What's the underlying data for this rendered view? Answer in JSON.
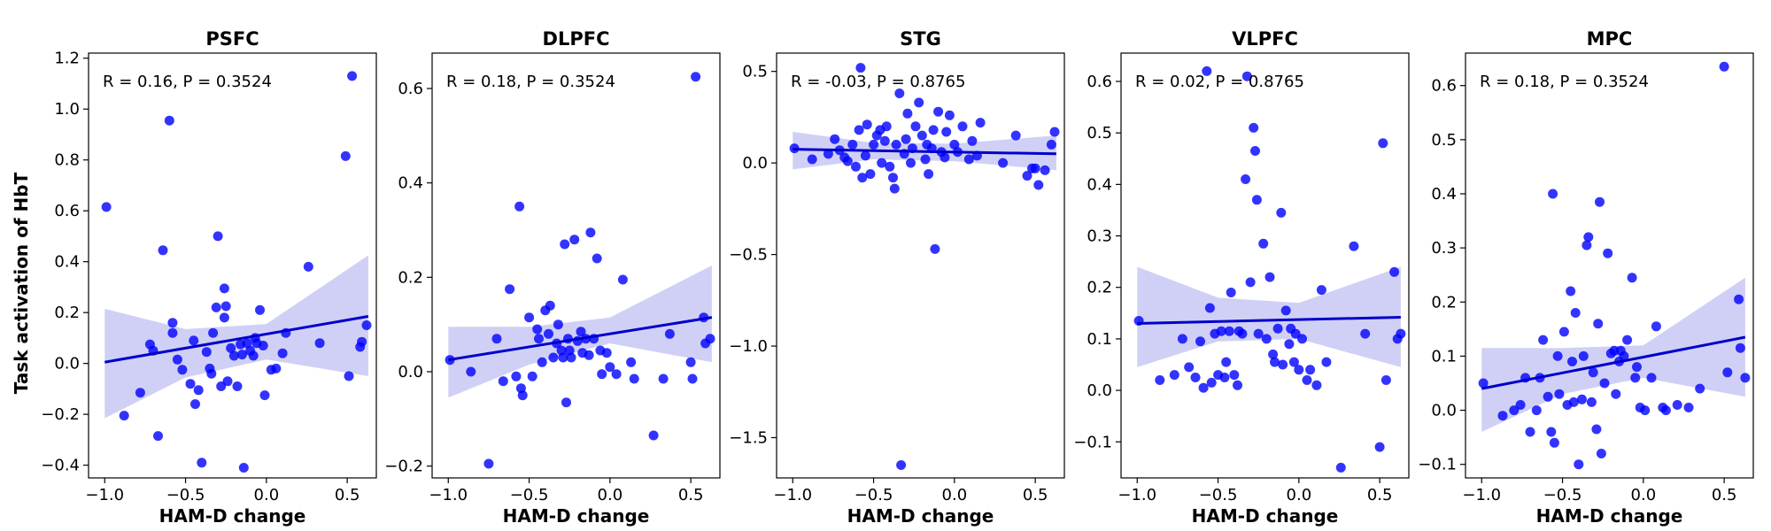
{
  "figure": {
    "ylabel": "Task activation of HbT",
    "xlabel": "HAM-D change",
    "point_color": "#0000ff",
    "line_color": "#0000cc",
    "band_color": "#c8c8f5"
  },
  "chart_data": [
    {
      "type": "scatter",
      "title": "PSFC",
      "xlabel": "HAM-D change",
      "ylabel": "Task activation of HbT",
      "annotation": "R = 0.16, P = 0.3524",
      "xlim": [
        -1.1,
        0.68
      ],
      "ylim": [
        -0.45,
        1.22
      ],
      "xticks": [
        -1.0,
        -0.5,
        0.0,
        0.5
      ],
      "xtick_labels": [
        "−1.0",
        "−0.5",
        "0.0",
        "0.5"
      ],
      "yticks": [
        -0.4,
        -0.2,
        0.0,
        0.2,
        0.4,
        0.6,
        0.8,
        1.0,
        1.2
      ],
      "ytick_labels": [
        "−0.4",
        "−0.2",
        "0.0",
        "0.2",
        "0.4",
        "0.6",
        "0.8",
        "1.0",
        "1.2"
      ],
      "grid": false,
      "fit": {
        "x": [
          -1.0,
          0.63
        ],
        "y": [
          0.005,
          0.185
        ]
      },
      "ci_band": {
        "x": [
          -1.0,
          -0.5,
          0.0,
          0.63
        ],
        "upper": [
          0.215,
          0.135,
          0.155,
          0.425
        ],
        "lower": [
          -0.215,
          -0.055,
          0.015,
          -0.05
        ]
      },
      "x": [
        -0.99,
        -0.88,
        -0.78,
        -0.72,
        -0.7,
        -0.67,
        -0.64,
        -0.6,
        -0.58,
        -0.58,
        -0.55,
        -0.52,
        -0.47,
        -0.45,
        -0.44,
        -0.42,
        -0.4,
        -0.37,
        -0.35,
        -0.34,
        -0.33,
        -0.31,
        -0.3,
        -0.28,
        -0.26,
        -0.26,
        -0.25,
        -0.24,
        -0.22,
        -0.2,
        -0.18,
        -0.16,
        -0.15,
        -0.14,
        -0.12,
        -0.1,
        -0.08,
        -0.07,
        -0.06,
        -0.04,
        -0.02,
        -0.01,
        0.03,
        0.06,
        0.1,
        0.12,
        0.26,
        0.33,
        0.49,
        0.51,
        0.53,
        0.58,
        0.59,
        0.62
      ],
      "y": [
        0.615,
        -0.205,
        -0.115,
        0.075,
        0.05,
        -0.285,
        0.445,
        0.955,
        0.16,
        0.12,
        0.015,
        -0.025,
        -0.08,
        0.09,
        -0.16,
        -0.105,
        -0.39,
        0.045,
        -0.02,
        -0.04,
        0.12,
        0.22,
        0.5,
        -0.09,
        0.295,
        0.18,
        0.225,
        -0.07,
        0.06,
        0.03,
        -0.09,
        0.075,
        0.035,
        -0.41,
        0.08,
        0.05,
        0.03,
        0.1,
        0.08,
        0.21,
        0.07,
        -0.125,
        -0.025,
        -0.02,
        0.04,
        0.12,
        0.38,
        0.08,
        0.815,
        -0.05,
        1.13,
        0.065,
        0.085,
        0.15
      ]
    },
    {
      "type": "scatter",
      "title": "DLPFC",
      "xlabel": "HAM-D change",
      "annotation": "R = 0.18, P = 0.3524",
      "xlim": [
        -1.1,
        0.68
      ],
      "ylim": [
        -0.225,
        0.675
      ],
      "xticks": [
        -1.0,
        -0.5,
        0.0,
        0.5
      ],
      "xtick_labels": [
        "−1.0",
        "−0.5",
        "0.0",
        "0.5"
      ],
      "yticks": [
        -0.2,
        0.0,
        0.2,
        0.4,
        0.6
      ],
      "ytick_labels": [
        "−0.2",
        "0.0",
        "0.2",
        "0.4",
        "0.6"
      ],
      "grid": false,
      "fit": {
        "x": [
          -1.0,
          0.63
        ],
        "y": [
          0.025,
          0.115
        ]
      },
      "ci_band": {
        "x": [
          -1.0,
          -0.5,
          0.0,
          0.63
        ],
        "upper": [
          0.095,
          0.095,
          0.115,
          0.225
        ],
        "lower": [
          -0.055,
          0.015,
          0.06,
          0.02
        ]
      },
      "x": [
        -0.99,
        -0.86,
        -0.75,
        -0.7,
        -0.66,
        -0.62,
        -0.58,
        -0.56,
        -0.55,
        -0.54,
        -0.5,
        -0.48,
        -0.45,
        -0.44,
        -0.42,
        -0.4,
        -0.38,
        -0.37,
        -0.35,
        -0.33,
        -0.32,
        -0.3,
        -0.29,
        -0.28,
        -0.27,
        -0.26,
        -0.25,
        -0.24,
        -0.22,
        -0.2,
        -0.18,
        -0.17,
        -0.15,
        -0.13,
        -0.12,
        -0.1,
        -0.08,
        -0.06,
        -0.05,
        -0.02,
        0.0,
        0.04,
        0.08,
        0.13,
        0.15,
        0.27,
        0.33,
        0.37,
        0.5,
        0.51,
        0.53,
        0.58,
        0.59,
        0.62
      ],
      "y": [
        0.025,
        0.0,
        -0.195,
        0.07,
        -0.02,
        0.175,
        -0.01,
        0.35,
        -0.035,
        -0.05,
        0.115,
        -0.01,
        0.09,
        0.07,
        0.02,
        0.13,
        0.08,
        0.14,
        0.03,
        0.06,
        0.1,
        0.045,
        0.03,
        0.27,
        -0.065,
        0.07,
        0.045,
        0.03,
        0.28,
        0.065,
        0.085,
        0.04,
        0.07,
        0.035,
        0.295,
        0.07,
        0.24,
        0.045,
        -0.005,
        0.04,
        0.01,
        -0.005,
        0.195,
        0.02,
        -0.015,
        -0.135,
        -0.015,
        0.08,
        0.02,
        -0.015,
        0.625,
        0.115,
        0.06,
        0.07
      ]
    },
    {
      "type": "scatter",
      "title": "STG",
      "xlabel": "HAM-D change",
      "annotation": "R = -0.03, P = 0.8765",
      "xlim": [
        -1.1,
        0.68
      ],
      "ylim": [
        -1.72,
        0.6
      ],
      "xticks": [
        -1.0,
        -0.5,
        0.0,
        0.5
      ],
      "xtick_labels": [
        "−1.0",
        "−0.5",
        "0.0",
        "0.5"
      ],
      "yticks": [
        -1.5,
        -1.0,
        -0.5,
        0.0,
        0.5
      ],
      "ytick_labels": [
        "−1.5",
        "−1.0",
        "−0.5",
        "0.0",
        "0.5"
      ],
      "grid": false,
      "fit": {
        "x": [
          -1.0,
          0.63
        ],
        "y": [
          0.075,
          0.05
        ]
      },
      "ci_band": {
        "x": [
          -1.0,
          -0.5,
          0.0,
          0.63
        ],
        "upper": [
          0.17,
          0.11,
          0.105,
          0.15
        ],
        "lower": [
          -0.035,
          0.02,
          0.01,
          -0.04
        ]
      },
      "x": [
        -0.99,
        -0.88,
        -0.78,
        -0.74,
        -0.71,
        -0.68,
        -0.66,
        -0.63,
        -0.61,
        -0.59,
        -0.58,
        -0.57,
        -0.55,
        -0.54,
        -0.52,
        -0.5,
        -0.48,
        -0.46,
        -0.45,
        -0.43,
        -0.42,
        -0.4,
        -0.38,
        -0.37,
        -0.36,
        -0.34,
        -0.33,
        -0.31,
        -0.3,
        -0.29,
        -0.27,
        -0.26,
        -0.24,
        -0.22,
        -0.2,
        -0.18,
        -0.17,
        -0.16,
        -0.14,
        -0.13,
        -0.12,
        -0.1,
        -0.08,
        -0.06,
        -0.05,
        -0.03,
        0.0,
        0.02,
        0.05,
        0.09,
        0.11,
        0.14,
        0.16,
        0.3,
        0.38,
        0.45,
        0.48,
        0.5,
        0.52,
        0.56,
        0.6,
        0.62
      ],
      "y": [
        0.08,
        0.02,
        0.05,
        0.13,
        0.07,
        0.03,
        0.01,
        0.1,
        -0.02,
        0.18,
        0.52,
        -0.08,
        0.04,
        0.21,
        -0.06,
        0.1,
        0.15,
        0.18,
        0.0,
        0.12,
        0.2,
        -0.02,
        -0.08,
        -0.14,
        0.1,
        0.38,
        -1.65,
        0.05,
        0.13,
        0.27,
        0.0,
        0.08,
        0.2,
        0.33,
        0.15,
        0.02,
        0.1,
        -0.06,
        0.08,
        0.18,
        -0.47,
        0.28,
        0.06,
        0.03,
        0.17,
        0.26,
        0.1,
        0.06,
        0.2,
        0.02,
        0.12,
        0.04,
        0.22,
        0.0,
        0.15,
        -0.07,
        -0.03,
        -0.03,
        -0.12,
        -0.04,
        0.1,
        0.17
      ]
    },
    {
      "type": "scatter",
      "title": "VLPFC",
      "xlabel": "HAM-D change",
      "annotation": "R = 0.02, P = 0.8765",
      "xlim": [
        -1.1,
        0.68
      ],
      "ylim": [
        -0.17,
        0.655
      ],
      "xticks": [
        -1.0,
        -0.5,
        0.0,
        0.5
      ],
      "xtick_labels": [
        "−1.0",
        "−0.5",
        "0.0",
        "0.5"
      ],
      "yticks": [
        -0.1,
        0.0,
        0.1,
        0.2,
        0.3,
        0.4,
        0.5,
        0.6
      ],
      "ytick_labels": [
        "−0.1",
        "0.0",
        "0.1",
        "0.2",
        "0.3",
        "0.4",
        "0.5",
        "0.6"
      ],
      "grid": false,
      "fit": {
        "x": [
          -1.0,
          0.63
        ],
        "y": [
          0.13,
          0.142
        ]
      },
      "ci_band": {
        "x": [
          -1.0,
          -0.5,
          0.0,
          0.63
        ],
        "upper": [
          0.24,
          0.18,
          0.17,
          0.24
        ],
        "lower": [
          0.045,
          0.095,
          0.1,
          0.045
        ]
      },
      "x": [
        -0.99,
        -0.86,
        -0.77,
        -0.72,
        -0.68,
        -0.64,
        -0.61,
        -0.59,
        -0.57,
        -0.55,
        -0.54,
        -0.52,
        -0.5,
        -0.48,
        -0.46,
        -0.45,
        -0.43,
        -0.42,
        -0.4,
        -0.38,
        -0.37,
        -0.35,
        -0.33,
        -0.32,
        -0.3,
        -0.28,
        -0.27,
        -0.26,
        -0.25,
        -0.22,
        -0.2,
        -0.18,
        -0.16,
        -0.15,
        -0.13,
        -0.11,
        -0.1,
        -0.08,
        -0.06,
        -0.05,
        -0.03,
        -0.02,
        0.0,
        0.02,
        0.05,
        0.07,
        0.11,
        0.14,
        0.17,
        0.26,
        0.34,
        0.41,
        0.5,
        0.52,
        0.54,
        0.59,
        0.61,
        0.63
      ],
      "y": [
        0.135,
        0.02,
        0.03,
        0.1,
        0.045,
        0.025,
        0.095,
        0.005,
        0.62,
        0.16,
        0.015,
        0.11,
        0.03,
        0.115,
        0.025,
        0.055,
        0.115,
        0.19,
        0.03,
        0.01,
        0.115,
        0.11,
        0.41,
        0.61,
        0.21,
        0.51,
        0.465,
        0.37,
        0.11,
        0.285,
        0.1,
        0.22,
        0.07,
        0.055,
        0.12,
        0.345,
        0.05,
        0.155,
        0.09,
        0.12,
        0.055,
        0.11,
        0.04,
        0.1,
        0.02,
        0.04,
        0.01,
        0.195,
        0.055,
        -0.15,
        0.28,
        0.11,
        -0.11,
        0.48,
        0.02,
        0.23,
        0.1,
        0.11
      ]
    },
    {
      "type": "scatter",
      "title": "MPC",
      "xlabel": "HAM-D change",
      "annotation": "R = 0.18, P = 0.3524",
      "xlim": [
        -1.1,
        0.68
      ],
      "ylim": [
        -0.125,
        0.66
      ],
      "xticks": [
        -1.0,
        -0.5,
        0.0,
        0.5
      ],
      "xtick_labels": [
        "−1.0",
        "−0.5",
        "0.0",
        "0.5"
      ],
      "yticks": [
        -0.1,
        0.0,
        0.1,
        0.2,
        0.3,
        0.4,
        0.5,
        0.6
      ],
      "ytick_labels": [
        "−0.1",
        "0.0",
        "0.1",
        "0.2",
        "0.3",
        "0.4",
        "0.5",
        "0.6"
      ],
      "grid": false,
      "fit": {
        "x": [
          -1.0,
          0.63
        ],
        "y": [
          0.04,
          0.135
        ]
      },
      "ci_band": {
        "x": [
          -1.0,
          -0.5,
          0.0,
          0.63
        ],
        "upper": [
          0.115,
          0.115,
          0.12,
          0.245
        ],
        "lower": [
          -0.04,
          0.03,
          0.06,
          0.025
        ]
      },
      "x": [
        -0.99,
        -0.87,
        -0.8,
        -0.76,
        -0.73,
        -0.7,
        -0.66,
        -0.64,
        -0.62,
        -0.59,
        -0.57,
        -0.56,
        -0.55,
        -0.53,
        -0.52,
        -0.49,
        -0.47,
        -0.45,
        -0.44,
        -0.43,
        -0.42,
        -0.4,
        -0.38,
        -0.37,
        -0.35,
        -0.34,
        -0.32,
        -0.31,
        -0.29,
        -0.28,
        -0.27,
        -0.26,
        -0.24,
        -0.22,
        -0.2,
        -0.18,
        -0.17,
        -0.15,
        -0.14,
        -0.12,
        -0.1,
        -0.07,
        -0.05,
        -0.04,
        -0.02,
        0.01,
        0.05,
        0.08,
        0.12,
        0.14,
        0.21,
        0.28,
        0.35,
        0.5,
        0.52,
        0.59,
        0.6,
        0.63
      ],
      "y": [
        0.05,
        -0.01,
        0.0,
        0.01,
        0.06,
        -0.04,
        0.0,
        0.06,
        0.13,
        0.025,
        -0.04,
        0.4,
        -0.06,
        0.1,
        0.03,
        0.145,
        0.01,
        0.22,
        0.09,
        0.015,
        0.18,
        -0.1,
        0.02,
        0.1,
        0.305,
        0.32,
        0.015,
        0.07,
        -0.035,
        0.16,
        0.385,
        -0.08,
        0.05,
        0.29,
        0.105,
        0.11,
        0.03,
        0.09,
        0.11,
        0.1,
        0.13,
        0.245,
        0.06,
        0.08,
        0.005,
        0.0,
        0.06,
        0.155,
        0.005,
        0.0,
        0.01,
        0.005,
        0.04,
        0.635,
        0.07,
        0.205,
        0.115,
        0.06
      ]
    }
  ]
}
